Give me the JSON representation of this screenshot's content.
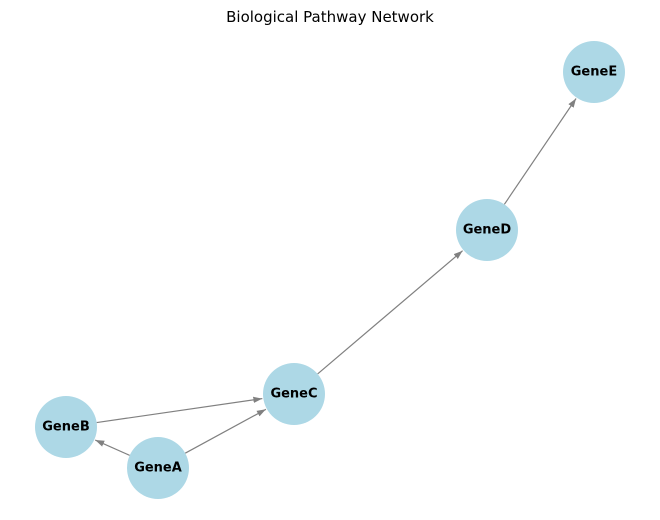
{
  "diagram": {
    "title": "Biological Pathway Network",
    "node_color": "#add8e6",
    "edge_color": "#808080",
    "nodes": [
      {
        "id": "GeneA",
        "label": "GeneA"
      },
      {
        "id": "GeneB",
        "label": "GeneB"
      },
      {
        "id": "GeneC",
        "label": "GeneC"
      },
      {
        "id": "GeneD",
        "label": "GeneD"
      },
      {
        "id": "GeneE",
        "label": "GeneE"
      }
    ],
    "edges": [
      {
        "from": "GeneA",
        "to": "GeneB"
      },
      {
        "from": "GeneA",
        "to": "GeneC"
      },
      {
        "from": "GeneB",
        "to": "GeneC"
      },
      {
        "from": "GeneC",
        "to": "GeneD"
      },
      {
        "from": "GeneD",
        "to": "GeneE"
      }
    ]
  }
}
